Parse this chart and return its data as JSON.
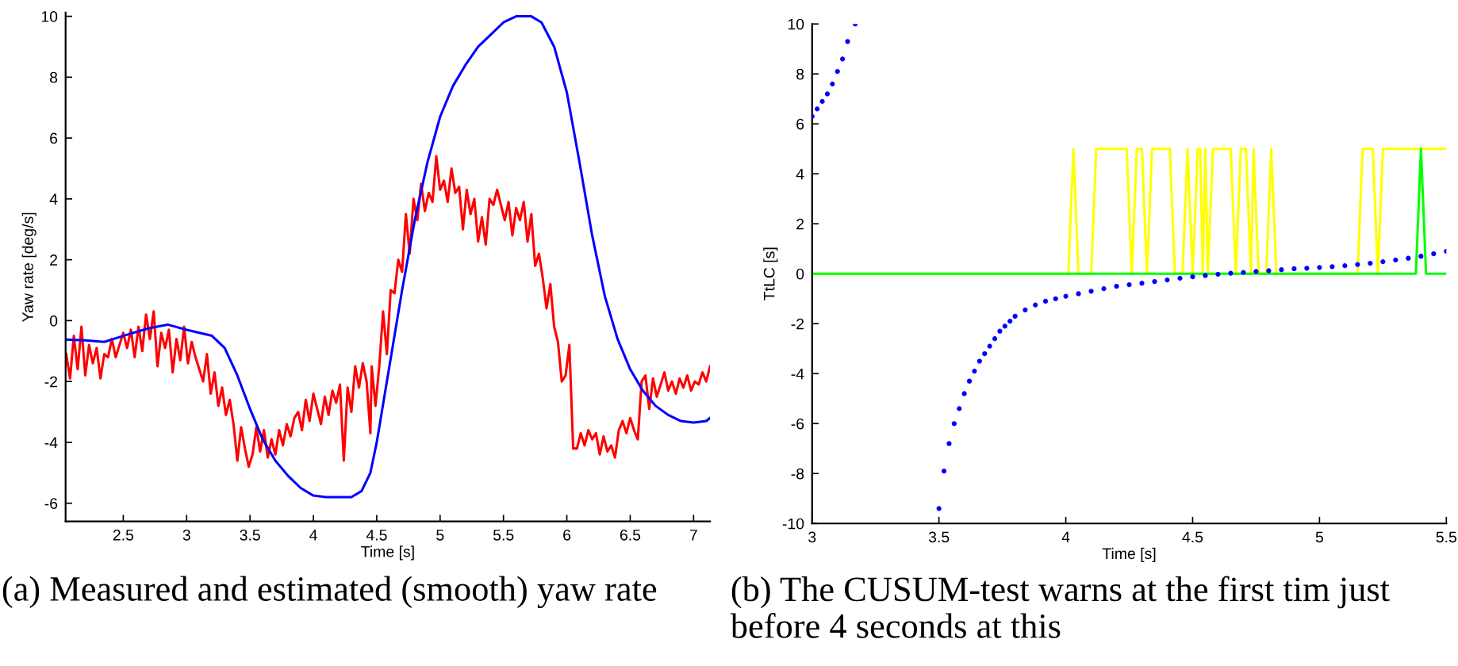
{
  "chart_data": [
    {
      "type": "line",
      "xlabel": "Time [s]",
      "ylabel": "Yaw rate [deg/s]",
      "xlim": [
        2.045,
        7.13
      ],
      "ylim": [
        -6.6,
        10.12
      ],
      "xticks": [
        2.5,
        3,
        3.5,
        4,
        4.5,
        5,
        5.5,
        6,
        6.5,
        7
      ],
      "yticks": [
        -6,
        -4,
        -2,
        0,
        2,
        4,
        6,
        8,
        10
      ],
      "grid": false,
      "marker": "none",
      "line_style": "solid",
      "annotations": [
        "(a) Measured and estimated (smooth) yaw rate"
      ],
      "series": [
        {
          "color": "#ff0000",
          "x": [
            2.05,
            2.08,
            2.11,
            2.14,
            2.17,
            2.2,
            2.23,
            2.26,
            2.29,
            2.32,
            2.35,
            2.38,
            2.41,
            2.44,
            2.47,
            2.5,
            2.53,
            2.56,
            2.59,
            2.62,
            2.65,
            2.68,
            2.71,
            2.74,
            2.77,
            2.8,
            2.83,
            2.86,
            2.89,
            2.92,
            2.95,
            2.98,
            3.01,
            3.04,
            3.07,
            3.1,
            3.13,
            3.16,
            3.19,
            3.22,
            3.25,
            3.28,
            3.31,
            3.34,
            3.37,
            3.4,
            3.43,
            3.46,
            3.49,
            3.52,
            3.55,
            3.58,
            3.61,
            3.64,
            3.67,
            3.7,
            3.73,
            3.76,
            3.79,
            3.82,
            3.85,
            3.88,
            3.91,
            3.94,
            3.97,
            4.0,
            4.03,
            4.06,
            4.09,
            4.12,
            4.15,
            4.18,
            4.21,
            4.24,
            4.27,
            4.3,
            4.33,
            4.36,
            4.39,
            4.42,
            4.45,
            4.46,
            4.49,
            4.52,
            4.55,
            4.58,
            4.61,
            4.64,
            4.67,
            4.7,
            4.73,
            4.76,
            4.79,
            4.82,
            4.85,
            4.88,
            4.91,
            4.94,
            4.97,
            5.0,
            5.03,
            5.06,
            5.09,
            5.12,
            5.15,
            5.18,
            5.21,
            5.24,
            5.27,
            5.3,
            5.33,
            5.36,
            5.39,
            5.42,
            5.45,
            5.48,
            5.51,
            5.54,
            5.57,
            5.6,
            5.63,
            5.66,
            5.69,
            5.72,
            5.75,
            5.78,
            5.81,
            5.84,
            5.87,
            5.9,
            5.93,
            5.96,
            5.99,
            6.02,
            6.05,
            6.08,
            6.11,
            6.14,
            6.17,
            6.2,
            6.23,
            6.26,
            6.29,
            6.32,
            6.35,
            6.38,
            6.41,
            6.44,
            6.47,
            6.5,
            6.53,
            6.56,
            6.59,
            6.62,
            6.65,
            6.68,
            6.71,
            6.74,
            6.77,
            6.8,
            6.83,
            6.86,
            6.89,
            6.92,
            6.95,
            6.98,
            7.01,
            7.04,
            7.07,
            7.1,
            7.13
          ],
          "values": [
            -1.1,
            -1.9,
            -0.5,
            -1.6,
            -0.2,
            -1.8,
            -0.8,
            -1.4,
            -0.9,
            -1.9,
            -1.1,
            -1.2,
            -0.6,
            -1.2,
            -0.8,
            -0.4,
            -0.9,
            -0.3,
            -1.2,
            -0.2,
            -1.0,
            0.2,
            -0.6,
            0.3,
            -1.5,
            -0.4,
            -0.9,
            -0.3,
            -1.7,
            -0.6,
            -1.3,
            -0.2,
            -1.4,
            -0.7,
            -1.2,
            -1.6,
            -2.0,
            -1.1,
            -2.4,
            -1.7,
            -2.8,
            -2.2,
            -3.1,
            -2.6,
            -3.4,
            -4.6,
            -3.5,
            -4.2,
            -4.8,
            -4.4,
            -3.5,
            -4.3,
            -3.6,
            -4.5,
            -3.9,
            -4.4,
            -3.6,
            -4.1,
            -3.4,
            -3.8,
            -3.2,
            -3.0,
            -3.6,
            -2.6,
            -3.3,
            -2.4,
            -2.9,
            -3.4,
            -2.5,
            -3.1,
            -2.3,
            -2.7,
            -2.1,
            -4.6,
            -2.2,
            -3.0,
            -1.5,
            -2.2,
            -1.4,
            -2.0,
            -3.7,
            -1.5,
            -2.8,
            -1.5,
            0.3,
            -1.1,
            1.0,
            0.9,
            2.0,
            1.6,
            3.5,
            2.2,
            4.0,
            3.3,
            4.5,
            3.6,
            4.2,
            3.9,
            5.4,
            4.3,
            4.6,
            3.9,
            5.0,
            4.2,
            4.4,
            3.0,
            4.3,
            3.5,
            4.0,
            2.6,
            3.4,
            2.5,
            4.0,
            3.8,
            4.3,
            3.8,
            3.3,
            3.9,
            2.8,
            3.7,
            3.3,
            3.9,
            2.6,
            3.5,
            1.8,
            2.2,
            1.4,
            0.4,
            1.2,
            -0.2,
            -0.7,
            -2.0,
            -1.8,
            -0.8,
            -4.2,
            -4.2,
            -3.7,
            -4.1,
            -3.6,
            -3.9,
            -3.7,
            -4.4,
            -3.8,
            -4.3,
            -4.1,
            -4.5,
            -3.6,
            -3.3,
            -3.7,
            -3.2,
            -3.6,
            -3.9,
            -2.0,
            -1.8,
            -2.9,
            -1.9,
            -2.5,
            -2.1,
            -1.7,
            -2.3,
            -2.0,
            -2.4,
            -1.9,
            -2.2,
            -1.8,
            -2.3,
            -2.0,
            -2.1,
            -1.7,
            -2.0,
            -1.5
          ]
        },
        {
          "color": "#0000ff",
          "x": [
            2.05,
            2.2,
            2.35,
            2.5,
            2.7,
            2.85,
            3.0,
            3.2,
            3.3,
            3.4,
            3.5,
            3.6,
            3.7,
            3.8,
            3.9,
            4.0,
            4.1,
            4.3,
            4.38,
            4.45,
            4.5,
            4.6,
            4.7,
            4.8,
            4.9,
            5.0,
            5.1,
            5.2,
            5.3,
            5.4,
            5.5,
            5.6,
            5.72,
            5.8,
            5.9,
            6.0,
            6.1,
            6.2,
            6.3,
            6.4,
            6.5,
            6.6,
            6.7,
            6.8,
            6.9,
            7.0,
            7.1,
            7.13
          ],
          "values": [
            -0.62,
            -0.65,
            -0.7,
            -0.5,
            -0.25,
            -0.13,
            -0.3,
            -0.5,
            -0.9,
            -1.8,
            -2.9,
            -3.9,
            -4.6,
            -5.1,
            -5.5,
            -5.75,
            -5.8,
            -5.8,
            -5.6,
            -5.0,
            -4.0,
            -1.5,
            1.0,
            3.3,
            5.2,
            6.7,
            7.7,
            8.4,
            9.0,
            9.4,
            9.8,
            10.0,
            10.0,
            9.8,
            9.0,
            7.5,
            5.2,
            2.8,
            0.8,
            -0.6,
            -1.6,
            -2.3,
            -2.8,
            -3.1,
            -3.3,
            -3.35,
            -3.3,
            -3.2
          ]
        }
      ]
    },
    {
      "type": "line",
      "xlabel": "Time [s]",
      "ylabel": "TtLC [s]",
      "xlim": [
        3,
        5.5
      ],
      "ylim": [
        -10,
        10
      ],
      "xticks": [
        3,
        3.5,
        4,
        4.5,
        5,
        5.5
      ],
      "yticks": [
        -10,
        -8,
        -6,
        -4,
        -2,
        0,
        2,
        4,
        6,
        8,
        10
      ],
      "grid": false,
      "line_style": "solid",
      "annotations": [
        "(b) The CUSUM-test warns at the first tim just before 4 seconds at this"
      ],
      "series": [
        {
          "color": "#ffff00",
          "x": [
            3,
            4.01,
            4.03,
            4.05,
            4.1,
            4.12,
            4.24,
            4.26,
            4.28,
            4.3,
            4.32,
            4.34,
            4.41,
            4.43,
            4.46,
            4.48,
            4.5,
            4.52,
            4.53,
            4.54,
            4.55,
            4.56,
            4.58,
            4.65,
            4.67,
            4.69,
            4.71,
            4.73,
            4.74,
            4.76,
            4.79,
            4.81,
            4.83,
            5.15,
            5.17,
            5.21,
            5.23,
            5.25,
            5.5
          ],
          "values": [
            0,
            0,
            5,
            0,
            0,
            5,
            5,
            0,
            5,
            5,
            0,
            5,
            5,
            0,
            0,
            5,
            0,
            5,
            5,
            0,
            5,
            0,
            5,
            5,
            0,
            5,
            5,
            0,
            5,
            0,
            0,
            5,
            0,
            0,
            5,
            5,
            0,
            5,
            5
          ]
        },
        {
          "color": "#00ff00",
          "x": [
            3,
            5.38,
            5.4,
            5.42,
            5.5
          ],
          "values": [
            0,
            0,
            5,
            0,
            0
          ]
        },
        {
          "type": "scatter",
          "marker": "circle",
          "color": "#0000ff",
          "x": [
            3.0,
            3.02,
            3.04,
            3.06,
            3.08,
            3.1,
            3.12,
            3.14,
            3.17,
            3.5,
            3.52,
            3.54,
            3.56,
            3.58,
            3.6,
            3.62,
            3.64,
            3.66,
            3.68,
            3.7,
            3.72,
            3.74,
            3.76,
            3.78,
            3.8,
            3.84,
            3.88,
            3.92,
            3.96,
            4.0,
            4.05,
            4.1,
            4.15,
            4.2,
            4.25,
            4.3,
            4.35,
            4.4,
            4.45,
            4.5,
            4.55,
            4.6,
            4.65,
            4.7,
            4.75,
            4.8,
            4.85,
            4.9,
            4.95,
            5.0,
            5.05,
            5.1,
            5.15,
            5.2,
            5.25,
            5.3,
            5.35,
            5.4,
            5.45,
            5.5
          ],
          "values": [
            6.3,
            6.6,
            6.9,
            7.2,
            7.6,
            8.1,
            8.6,
            9.3,
            10.0,
            -9.4,
            -7.9,
            -6.8,
            -6.0,
            -5.4,
            -4.8,
            -4.3,
            -3.9,
            -3.5,
            -3.2,
            -2.9,
            -2.6,
            -2.3,
            -2.1,
            -1.9,
            -1.7,
            -1.45,
            -1.25,
            -1.1,
            -1.0,
            -0.9,
            -0.8,
            -0.7,
            -0.6,
            -0.5,
            -0.44,
            -0.38,
            -0.31,
            -0.25,
            -0.18,
            -0.12,
            -0.07,
            -0.02,
            0.02,
            0.05,
            0.09,
            0.12,
            0.16,
            0.2,
            0.22,
            0.25,
            0.28,
            0.32,
            0.37,
            0.42,
            0.48,
            0.55,
            0.62,
            0.7,
            0.8,
            0.9
          ]
        }
      ]
    }
  ]
}
